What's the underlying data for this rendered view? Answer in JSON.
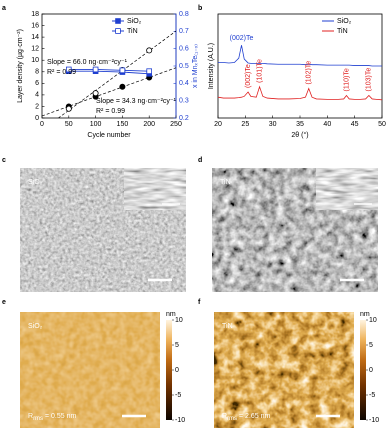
{
  "chart_data": [
    {
      "type": "line",
      "panel_label": "a",
      "xlabel": "Cycle number",
      "ylabel": "Layer density (µg·cm⁻²)",
      "y2label": "x in MnₓTe₍₁₋ₓ₎",
      "x": [
        50,
        100,
        150,
        200
      ],
      "xlim": [
        0,
        250
      ],
      "xticks": [
        0,
        50,
        100,
        150,
        200,
        250
      ],
      "ylim": [
        0,
        18
      ],
      "yticks": [
        0,
        2,
        4,
        6,
        8,
        10,
        12,
        14,
        16,
        18
      ],
      "y2lim": [
        0.2,
        0.8
      ],
      "y2ticks": [
        0.2,
        0.3,
        0.4,
        0.5,
        0.6,
        0.7,
        0.8
      ],
      "series": [
        {
          "color": "#000000",
          "marker": "circle",
          "filled": true,
          "line": false,
          "fit": true,
          "values": [
            2.0,
            3.7,
            5.4,
            7.0
          ]
        },
        {
          "color": "#000000",
          "marker": "circle",
          "filled": false,
          "line": false,
          "fit": true,
          "values": [
            1.6,
            4.3,
            8.3,
            11.7
          ]
        },
        {
          "name": "SiO₂",
          "color": "#1f3fd0",
          "marker": "square",
          "filled": true,
          "line": true,
          "axis": "y2",
          "values": [
            0.47,
            0.47,
            0.465,
            0.455
          ]
        },
        {
          "name": "TiN",
          "color": "#1f3fd0",
          "marker": "square",
          "filled": false,
          "line": true,
          "axis": "y2",
          "values": [
            0.48,
            0.48,
            0.475,
            0.47
          ]
        }
      ],
      "annotations": [
        "Slope = 66.0 ng·cm⁻²cy⁻¹",
        "R² = 0.99",
        "Slope = 34.3 ng·cm⁻²cy⁻¹",
        "R² = 0.99"
      ]
    },
    {
      "type": "line",
      "panel_label": "b",
      "xlabel": "2θ (°)",
      "ylabel": "Intensity (A.U.)",
      "x": [
        20,
        21,
        22,
        23,
        23.8,
        24.3,
        24.8,
        25.5,
        26,
        27,
        27.6,
        28.2,
        29,
        31,
        33,
        35,
        36,
        36.6,
        37.2,
        38,
        40,
        42,
        43,
        43.5,
        44,
        45,
        46,
        47,
        47.6,
        48.2,
        49,
        50
      ],
      "xlim": [
        20,
        50
      ],
      "xticks": [
        20,
        25,
        30,
        35,
        40,
        45,
        50
      ],
      "ylim": [
        0,
        12
      ],
      "series": [
        {
          "name": "SiO₂",
          "color": "#1f3fd0",
          "line": true,
          "values": [
            6.4,
            6.4,
            6.35,
            6.4,
            6.9,
            8.4,
            6.8,
            6.35,
            6.3,
            6.3,
            6.3,
            6.3,
            6.25,
            6.2,
            6.2,
            6.2,
            6.15,
            6.2,
            6.15,
            6.15,
            6.1,
            6.1,
            6.1,
            6.1,
            6.1,
            6.05,
            6.05,
            6.05,
            6.05,
            6.0,
            6.0,
            6.0
          ]
        },
        {
          "name": "TiN",
          "color": "#e02020",
          "line": true,
          "values": [
            2.4,
            2.3,
            2.3,
            2.3,
            2.35,
            2.4,
            2.5,
            3.0,
            2.5,
            2.4,
            3.6,
            2.5,
            2.3,
            2.2,
            2.2,
            2.25,
            2.4,
            3.4,
            2.4,
            2.2,
            2.15,
            2.15,
            2.2,
            2.6,
            2.2,
            2.15,
            2.15,
            2.2,
            2.6,
            2.2,
            2.15,
            2.1
          ]
        }
      ],
      "peak_labels": [
        {
          "text": "(002)Te",
          "x": 24.3,
          "series": 0,
          "vertical": false
        },
        {
          "text": "(002)Te",
          "x": 25.5,
          "series": 1,
          "vertical": true
        },
        {
          "text": "(101)Te",
          "x": 27.6,
          "series": 1,
          "vertical": true
        },
        {
          "text": "(102)Te",
          "x": 36.6,
          "series": 1,
          "vertical": true
        },
        {
          "text": "(110)Te",
          "x": 43.5,
          "series": 1,
          "vertical": true
        },
        {
          "text": "(103)Te",
          "x": 47.6,
          "series": 1,
          "vertical": true
        }
      ]
    }
  ],
  "images": [
    {
      "panel_label": "c",
      "kind": "sem",
      "label": "SiO₂"
    },
    {
      "panel_label": "d",
      "kind": "sem",
      "label": "TiN"
    },
    {
      "panel_label": "e",
      "kind": "afm",
      "label": "SiO₂",
      "roughness": {
        "symbol": "R",
        "subscript": "rms",
        "text": " = 0.55 nm"
      },
      "colorbar": {
        "unit": "nm",
        "lim": [
          -10,
          10
        ],
        "ticks": [
          10,
          5,
          0,
          -5,
          -10
        ]
      }
    },
    {
      "panel_label": "f",
      "kind": "afm",
      "label": "TiN",
      "roughness": {
        "symbol": "R",
        "subscript": "rms",
        "text": " = 2.65 nm"
      },
      "colorbar": {
        "unit": "nm",
        "lim": [
          -10,
          10
        ],
        "ticks": [
          10,
          5,
          0,
          -5,
          -10
        ]
      }
    }
  ]
}
